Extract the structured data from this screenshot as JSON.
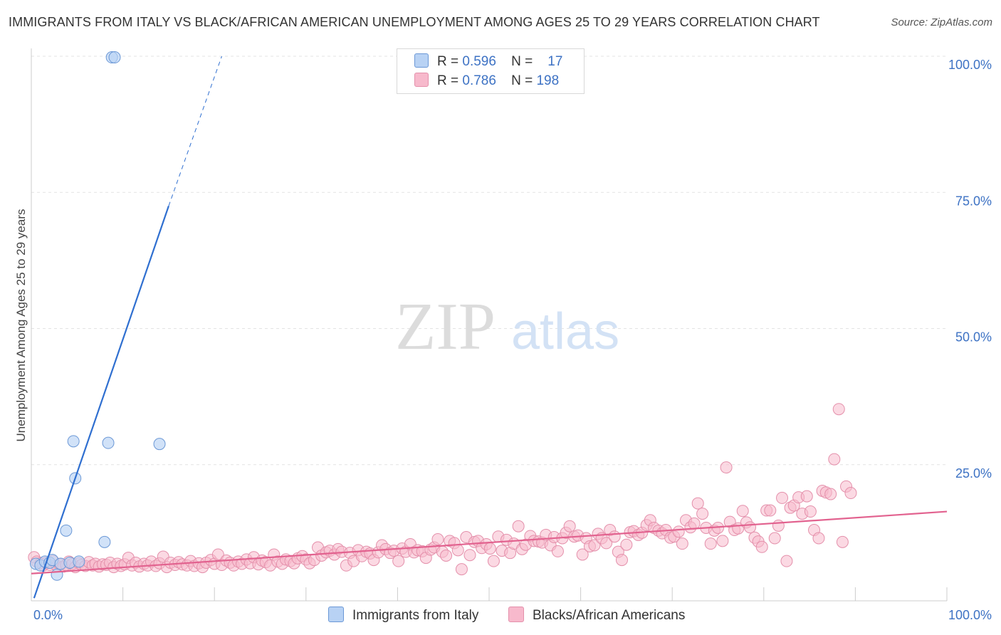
{
  "title": "IMMIGRANTS FROM ITALY VS BLACK/AFRICAN AMERICAN UNEMPLOYMENT AMONG AGES 25 TO 29 YEARS CORRELATION CHART",
  "source": "Source: ZipAtlas.com",
  "watermark": {
    "zip": "ZIP",
    "atlas": "atlas"
  },
  "legend": {
    "r_label": "R =",
    "n_label": "N =",
    "italy": {
      "r": "0.596",
      "n": "17"
    },
    "black": {
      "r": "0.786",
      "n": "198"
    }
  },
  "bottom_legend": {
    "italy": "Immigrants from Italy",
    "black": "Blacks/African Americans"
  },
  "colors": {
    "italy_fill": "#b8d2f4",
    "italy_stroke": "#6b98d6",
    "italy_line": "#2f6fd0",
    "black_fill": "#f7b9cc",
    "black_stroke": "#e490ab",
    "black_line": "#e2628f",
    "tick_text": "#3d72c4",
    "grid": "#e3e3e3"
  },
  "chart_data": {
    "type": "scatter",
    "title": "IMMIGRANTS FROM ITALY VS BLACK/AFRICAN AMERICAN UNEMPLOYMENT AMONG AGES 25 TO 29 YEARS CORRELATION CHART",
    "xlabel": "",
    "ylabel": "Unemployment Among Ages 25 to 29 years",
    "xlim": [
      0,
      100
    ],
    "ylim": [
      0,
      100
    ],
    "x_tick_labels": [
      "0.0%",
      "100.0%"
    ],
    "y_ticks": [
      25,
      50,
      75,
      100
    ],
    "y_tick_labels": [
      "25.0%",
      "50.0%",
      "75.0%",
      "100.0%"
    ],
    "grid": true,
    "series": [
      {
        "name": "Immigrants from Italy",
        "r": 0.596,
        "n": 17,
        "trend": {
          "x0": 0.3,
          "y0": 0.5,
          "x1": 15.0,
          "y1": 72.5,
          "dash_to_x": 20.8,
          "dash_to_y": 100
        },
        "points": [
          [
            0.5,
            6.8
          ],
          [
            1.0,
            6.5
          ],
          [
            1.5,
            7.2
          ],
          [
            2.0,
            7.0
          ],
          [
            2.3,
            7.5
          ],
          [
            2.8,
            4.8
          ],
          [
            3.2,
            6.8
          ],
          [
            4.2,
            7.0
          ],
          [
            5.2,
            7.2
          ],
          [
            3.8,
            12.9
          ],
          [
            4.8,
            22.5
          ],
          [
            8.0,
            10.8
          ],
          [
            4.6,
            29.3
          ],
          [
            8.4,
            29.0
          ],
          [
            14.0,
            28.8
          ],
          [
            8.8,
            99.8
          ],
          [
            9.1,
            99.8
          ]
        ]
      },
      {
        "name": "Blacks/African Americans",
        "r": 0.786,
        "n": 198,
        "trend": {
          "x0": 0.0,
          "y0": 5.0,
          "x1": 100.0,
          "y1": 16.4
        },
        "points": [
          [
            0.3,
            8.0
          ],
          [
            0.6,
            7.2
          ],
          [
            1.0,
            6.9
          ],
          [
            1.3,
            6.5
          ],
          [
            1.6,
            7.0
          ],
          [
            2.0,
            6.6
          ],
          [
            2.4,
            7.3
          ],
          [
            2.8,
            6.4
          ],
          [
            3.1,
            6.7
          ],
          [
            3.5,
            6.3
          ],
          [
            3.8,
            6.6
          ],
          [
            4.1,
            7.2
          ],
          [
            4.5,
            6.8
          ],
          [
            4.8,
            6.2
          ],
          [
            5.2,
            6.9
          ],
          [
            5.5,
            6.6
          ],
          [
            5.9,
            6.4
          ],
          [
            6.3,
            7.1
          ],
          [
            6.7,
            6.5
          ],
          [
            7.0,
            6.8
          ],
          [
            7.4,
            6.3
          ],
          [
            7.8,
            6.7
          ],
          [
            8.2,
            6.6
          ],
          [
            8.6,
            7.0
          ],
          [
            9.0,
            6.2
          ],
          [
            9.4,
            6.8
          ],
          [
            9.8,
            6.4
          ],
          [
            10.2,
            6.7
          ],
          [
            10.6,
            7.9
          ],
          [
            11.0,
            6.5
          ],
          [
            11.4,
            7.0
          ],
          [
            11.8,
            6.3
          ],
          [
            12.3,
            6.8
          ],
          [
            12.7,
            6.5
          ],
          [
            13.1,
            7.2
          ],
          [
            13.6,
            6.4
          ],
          [
            14.0,
            6.9
          ],
          [
            14.4,
            8.1
          ],
          [
            14.8,
            6.2
          ],
          [
            15.2,
            7.0
          ],
          [
            15.7,
            6.6
          ],
          [
            16.1,
            7.1
          ],
          [
            16.5,
            6.7
          ],
          [
            17.0,
            6.5
          ],
          [
            17.4,
            7.3
          ],
          [
            17.8,
            6.4
          ],
          [
            18.3,
            6.9
          ],
          [
            18.7,
            6.2
          ],
          [
            19.1,
            7.0
          ],
          [
            19.6,
            7.5
          ],
          [
            20.0,
            6.8
          ],
          [
            20.4,
            8.5
          ],
          [
            20.8,
            6.6
          ],
          [
            21.3,
            7.4
          ],
          [
            21.7,
            7.0
          ],
          [
            22.1,
            6.5
          ],
          [
            22.6,
            7.2
          ],
          [
            23.0,
            6.8
          ],
          [
            23.5,
            7.6
          ],
          [
            23.9,
            6.9
          ],
          [
            24.3,
            8.0
          ],
          [
            24.8,
            6.7
          ],
          [
            25.2,
            7.4
          ],
          [
            25.6,
            7.1
          ],
          [
            26.1,
            6.5
          ],
          [
            26.5,
            8.5
          ],
          [
            26.9,
            7.2
          ],
          [
            27.4,
            6.8
          ],
          [
            27.8,
            7.6
          ],
          [
            28.3,
            7.3
          ],
          [
            28.7,
            6.9
          ],
          [
            29.1,
            7.8
          ],
          [
            29.6,
            8.2
          ],
          [
            30.0,
            7.6
          ],
          [
            30.4,
            6.9
          ],
          [
            30.9,
            7.5
          ],
          [
            31.3,
            9.8
          ],
          [
            31.7,
            8.3
          ],
          [
            32.2,
            8.9
          ],
          [
            32.6,
            9.2
          ],
          [
            33.1,
            8.5
          ],
          [
            33.5,
            9.5
          ],
          [
            33.9,
            9.0
          ],
          [
            34.4,
            6.5
          ],
          [
            34.8,
            8.8
          ],
          [
            35.2,
            7.3
          ],
          [
            35.7,
            9.3
          ],
          [
            36.1,
            8.2
          ],
          [
            36.6,
            9.0
          ],
          [
            37.0,
            8.7
          ],
          [
            37.4,
            7.5
          ],
          [
            37.9,
            8.9
          ],
          [
            38.3,
            10.2
          ],
          [
            38.7,
            9.5
          ],
          [
            39.2,
            8.8
          ],
          [
            39.6,
            9.2
          ],
          [
            40.1,
            7.3
          ],
          [
            40.5,
            9.6
          ],
          [
            40.9,
            9.0
          ],
          [
            41.4,
            10.4
          ],
          [
            41.8,
            8.9
          ],
          [
            42.2,
            9.3
          ],
          [
            42.7,
            9.1
          ],
          [
            43.1,
            7.9
          ],
          [
            43.6,
            9.4
          ],
          [
            44.0,
            9.8
          ],
          [
            44.4,
            11.3
          ],
          [
            44.9,
            9.0
          ],
          [
            45.3,
            8.3
          ],
          [
            45.7,
            11.0
          ],
          [
            46.2,
            10.6
          ],
          [
            46.6,
            9.3
          ],
          [
            47.0,
            5.8
          ],
          [
            47.5,
            11.7
          ],
          [
            47.9,
            8.4
          ],
          [
            48.4,
            10.8
          ],
          [
            48.8,
            11.0
          ],
          [
            49.2,
            9.7
          ],
          [
            49.7,
            10.4
          ],
          [
            50.1,
            9.6
          ],
          [
            50.5,
            7.3
          ],
          [
            51.0,
            11.8
          ],
          [
            51.4,
            9.2
          ],
          [
            51.9,
            11.2
          ],
          [
            52.3,
            8.8
          ],
          [
            52.7,
            10.5
          ],
          [
            53.2,
            13.7
          ],
          [
            53.6,
            9.5
          ],
          [
            54.0,
            10.3
          ],
          [
            54.5,
            11.9
          ],
          [
            54.9,
            11.0
          ],
          [
            55.4,
            10.9
          ],
          [
            55.8,
            10.7
          ],
          [
            56.2,
            12.1
          ],
          [
            56.7,
            10.2
          ],
          [
            57.1,
            11.7
          ],
          [
            57.5,
            9.1
          ],
          [
            58.0,
            11.5
          ],
          [
            58.4,
            12.5
          ],
          [
            58.8,
            13.7
          ],
          [
            59.3,
            11.8
          ],
          [
            59.7,
            12.0
          ],
          [
            60.2,
            8.5
          ],
          [
            60.6,
            11.5
          ],
          [
            61.0,
            10.0
          ],
          [
            61.5,
            10.2
          ],
          [
            61.9,
            12.3
          ],
          [
            62.3,
            11.5
          ],
          [
            62.8,
            10.6
          ],
          [
            63.2,
            13.0
          ],
          [
            63.7,
            11.8
          ],
          [
            64.1,
            9.0
          ],
          [
            64.5,
            7.5
          ],
          [
            65.0,
            10.3
          ],
          [
            65.4,
            12.6
          ],
          [
            65.8,
            12.8
          ],
          [
            66.3,
            12.1
          ],
          [
            66.7,
            12.5
          ],
          [
            67.2,
            13.9
          ],
          [
            67.6,
            14.8
          ],
          [
            68.0,
            13.4
          ],
          [
            68.5,
            12.9
          ],
          [
            68.9,
            12.4
          ],
          [
            69.3,
            13.0
          ],
          [
            69.8,
            11.6
          ],
          [
            70.2,
            11.8
          ],
          [
            70.7,
            12.7
          ],
          [
            71.1,
            10.5
          ],
          [
            71.5,
            14.8
          ],
          [
            72.0,
            13.5
          ],
          [
            72.4,
            14.2
          ],
          [
            72.8,
            17.9
          ],
          [
            73.3,
            16.0
          ],
          [
            73.7,
            13.4
          ],
          [
            74.2,
            10.5
          ],
          [
            74.6,
            12.9
          ],
          [
            75.0,
            13.4
          ],
          [
            75.5,
            11.0
          ],
          [
            75.9,
            24.5
          ],
          [
            76.3,
            14.5
          ],
          [
            76.8,
            13.0
          ],
          [
            77.2,
            13.3
          ],
          [
            77.7,
            16.5
          ],
          [
            78.1,
            14.4
          ],
          [
            78.5,
            13.5
          ],
          [
            79.0,
            11.6
          ],
          [
            79.4,
            10.9
          ],
          [
            79.8,
            9.9
          ],
          [
            80.3,
            16.6
          ],
          [
            80.7,
            16.6
          ],
          [
            81.2,
            11.5
          ],
          [
            81.6,
            13.8
          ],
          [
            82.0,
            18.9
          ],
          [
            82.5,
            7.3
          ],
          [
            82.9,
            17.1
          ],
          [
            83.3,
            17.5
          ],
          [
            83.8,
            19.0
          ],
          [
            84.2,
            16.0
          ],
          [
            84.7,
            19.2
          ],
          [
            85.1,
            16.4
          ],
          [
            85.5,
            13.0
          ],
          [
            86.0,
            11.5
          ],
          [
            86.4,
            20.2
          ],
          [
            86.8,
            19.9
          ],
          [
            87.3,
            19.6
          ],
          [
            87.7,
            26.0
          ],
          [
            88.2,
            35.2
          ],
          [
            88.6,
            10.8
          ],
          [
            89.0,
            21.0
          ],
          [
            89.5,
            19.8
          ]
        ]
      }
    ]
  }
}
